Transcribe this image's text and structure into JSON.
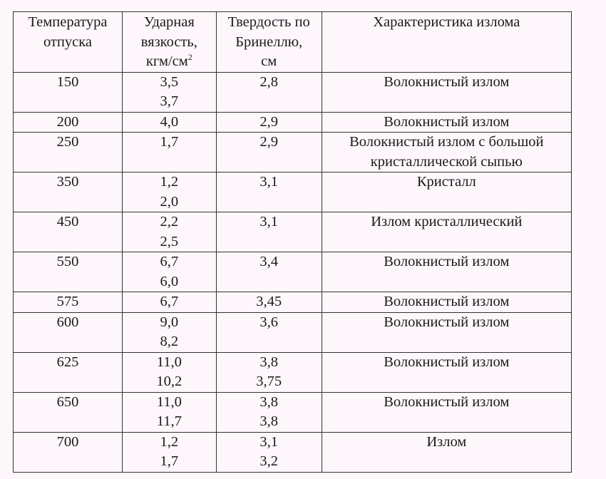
{
  "headers": [
    [
      "Температура",
      "отпуска"
    ],
    [
      "Ударная",
      "вязкость,",
      "кгм/см",
      "2"
    ],
    [
      "Твердость по",
      "Бринеллю,",
      "см"
    ],
    [
      "Характеристика излома"
    ]
  ],
  "rows": [
    {
      "temp": "150",
      "impact": [
        "3,5",
        "3,7"
      ],
      "hardness": [
        "2,8"
      ],
      "fracture": [
        "Волокнистый излом"
      ]
    },
    {
      "temp": "200",
      "impact": [
        "4,0"
      ],
      "hardness": [
        "2,9"
      ],
      "fracture": [
        "Волокнистый излом"
      ]
    },
    {
      "temp": "250",
      "impact": [
        "1,7"
      ],
      "hardness": [
        "2,9"
      ],
      "fracture": [
        "Волокнистый излом с большой",
        "кристаллической сыпью"
      ]
    },
    {
      "temp": "350",
      "impact": [
        "1,2",
        "2,0"
      ],
      "hardness": [
        "3,1"
      ],
      "fracture": [
        "Кристалл"
      ]
    },
    {
      "temp": "450",
      "impact": [
        "2,2",
        "2,5"
      ],
      "hardness": [
        "3,1"
      ],
      "fracture": [
        "Излом кристаллический"
      ]
    },
    {
      "temp": "550",
      "impact": [
        "6,7",
        "6,0"
      ],
      "hardness": [
        "3,4"
      ],
      "fracture": [
        "Волокнистый излом"
      ]
    },
    {
      "temp": "575",
      "impact": [
        "6,7"
      ],
      "hardness": [
        "3,45"
      ],
      "fracture": [
        "Волокнистый излом"
      ]
    },
    {
      "temp": "600",
      "impact": [
        "9,0",
        "8,2"
      ],
      "hardness": [
        "3,6"
      ],
      "fracture": [
        "Волокнистый излом"
      ]
    },
    {
      "temp": "625",
      "impact": [
        "11,0",
        "10,2"
      ],
      "hardness": [
        "3,8",
        "3,75"
      ],
      "fracture": [
        "Волокнистый излом"
      ]
    },
    {
      "temp": "650",
      "impact": [
        "11,0",
        "11,7"
      ],
      "hardness": [
        "3,8",
        "3,8"
      ],
      "fracture": [
        "Волокнистый излом"
      ]
    },
    {
      "temp": "700",
      "impact": [
        "1,2",
        "1,7"
      ],
      "hardness": [
        "3,1",
        "3,2"
      ],
      "fracture": [
        "Излом"
      ]
    }
  ]
}
